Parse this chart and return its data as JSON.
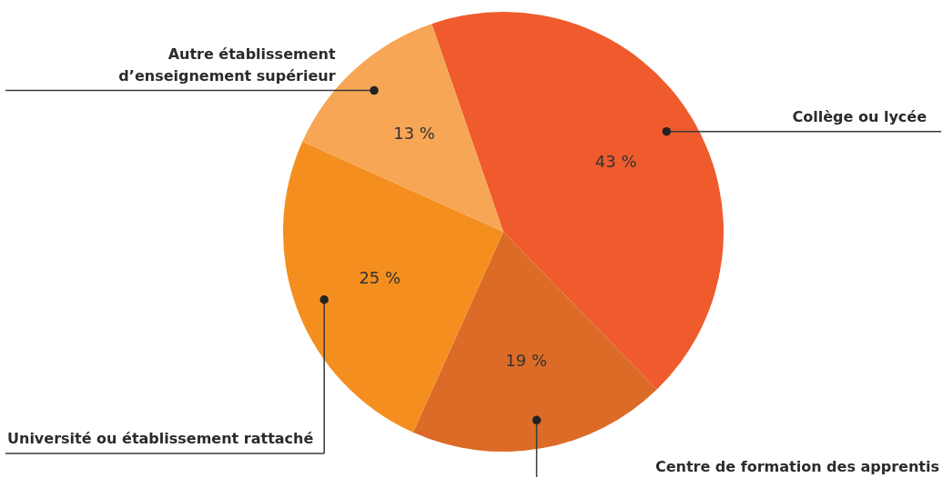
{
  "chart_data": {
    "type": "pie",
    "categories": [
      "Collège ou lycée",
      "Centre de formation des apprentis",
      "Université ou établissement rattaché",
      "Autre établissement\nd’enseignement supérieur"
    ],
    "values": [
      43,
      19,
      25,
      13
    ],
    "colors": [
      "#ef5b2d",
      "#dc6b27",
      "#f48f1f",
      "#f7a655"
    ],
    "value_labels": [
      "43 %",
      "19 %",
      "25 %",
      "13 %"
    ]
  }
}
